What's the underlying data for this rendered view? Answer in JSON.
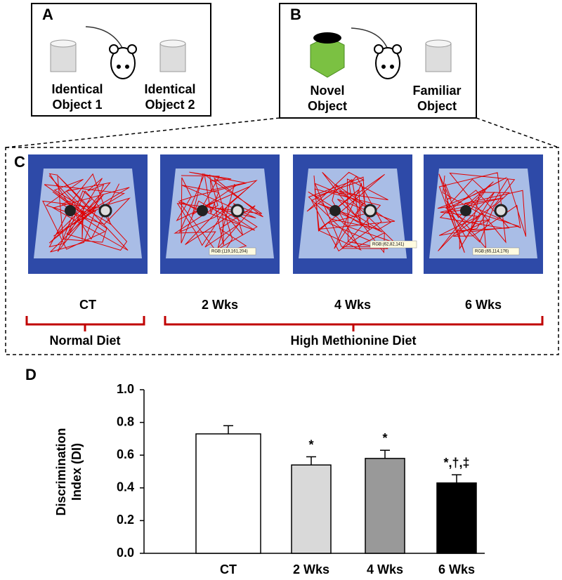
{
  "panel_a": {
    "label": "A",
    "left_object": [
      "Identical",
      "Object 1"
    ],
    "right_object": [
      "Identical",
      "Object 2"
    ]
  },
  "panel_b": {
    "label": "B",
    "left_object": [
      "Novel",
      "Object"
    ],
    "right_object": [
      "Familiar",
      "Object"
    ]
  },
  "panel_c": {
    "label": "C",
    "groups": [
      "CT",
      "2 Wks",
      "4 Wks",
      "6 Wks"
    ],
    "photo_labels": [
      "RGB:(119,161,204)",
      "RGB:(62,82,141)",
      "RGB:(65,114,176)"
    ],
    "diets": [
      "Normal Diet",
      "High Methionine Diet"
    ]
  },
  "chart_data": {
    "type": "bar",
    "panel_label": "D",
    "y_label": [
      "Discrimination",
      "Index (DI)"
    ],
    "categories": [
      "CT",
      "2 Wks",
      "4 Wks",
      "6 Wks"
    ],
    "values": [
      0.73,
      0.54,
      0.58,
      0.43
    ],
    "errors": [
      0.05,
      0.05,
      0.05,
      0.05
    ],
    "annotations": [
      null,
      "*",
      "*",
      "*,†,‡"
    ],
    "colors": [
      "#ffffff",
      "#d9d9d9",
      "#999999",
      "#000000"
    ],
    "ylim": [
      0,
      1
    ],
    "yticks": [
      {
        "value": 0,
        "label": "0.0"
      },
      0.2,
      0.4,
      0.6,
      0.8,
      {
        "value": 1,
        "label": "1.0"
      }
    ]
  }
}
